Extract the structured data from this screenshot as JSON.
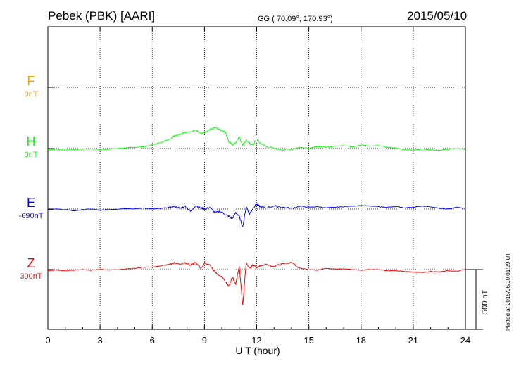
{
  "header": {
    "station": "Pebek (PBK)  [AARI]",
    "coords": "GG ( 70.09°, 170.93°)",
    "date": "2015/05/10"
  },
  "side_note": "Plotted at 2015/06/10 01:29 UT",
  "scale_label": "500 nT",
  "chart_data": {
    "type": "line",
    "xlabel": "U T (hour)",
    "xlim": [
      0,
      24
    ],
    "xticks": [
      "0",
      "3",
      "6",
      "9",
      "12",
      "15",
      "18",
      "21",
      "24"
    ],
    "components": [
      {
        "name": "F",
        "baseline": "0nT",
        "color": "#ffa500",
        "has_data": false
      },
      {
        "name": "H",
        "baseline": "0nT",
        "color": "#00ff00",
        "has_data": true
      },
      {
        "name": "E",
        "baseline": "-690nT",
        "color": "#0000ff",
        "has_data": true
      },
      {
        "name": "Z",
        "baseline": "300nT",
        "color": "#ff0000",
        "has_data": true
      }
    ],
    "series_units": "nT relative to baseline",
    "series": [
      {
        "name": "H",
        "x": [
          0,
          0.5,
          1,
          1.5,
          2,
          2.5,
          3,
          3.5,
          4,
          4.5,
          5,
          5.5,
          6,
          6.5,
          7,
          7.3,
          7.6,
          7.9,
          8.2,
          8.5,
          8.8,
          9,
          9.3,
          9.6,
          9.9,
          10.2,
          10.4,
          10.6,
          10.8,
          11,
          11.2,
          11.4,
          11.6,
          11.8,
          12,
          12.2,
          12.5,
          13,
          13.5,
          14,
          14.5,
          15,
          15.5,
          16,
          16.5,
          17,
          17.5,
          18,
          18.5,
          19,
          19.5,
          20,
          20.5,
          21,
          21.5,
          22,
          22.5,
          23,
          23.5,
          24
        ],
        "y": [
          -10,
          -5,
          -12,
          -8,
          -5,
          -3,
          -8,
          -5,
          0,
          5,
          10,
          15,
          30,
          50,
          80,
          110,
          120,
          140,
          135,
          160,
          125,
          130,
          155,
          175,
          155,
          140,
          60,
          30,
          50,
          100,
          30,
          70,
          40,
          30,
          80,
          45,
          20,
          0,
          -10,
          -5,
          10,
          5,
          15,
          10,
          20,
          25,
          15,
          30,
          20,
          25,
          10,
          5,
          -10,
          -15,
          -5,
          -10,
          -15,
          -5,
          0,
          -5
        ]
      },
      {
        "name": "E",
        "x": [
          0,
          0.5,
          1,
          1.5,
          2,
          2.5,
          3,
          3.5,
          4,
          4.5,
          5,
          5.5,
          6,
          6.5,
          7,
          7.3,
          7.6,
          7.9,
          8.2,
          8.5,
          8.8,
          9,
          9.3,
          9.6,
          9.9,
          10.2,
          10.4,
          10.6,
          10.8,
          11,
          11.2,
          11.4,
          11.6,
          11.8,
          12,
          12.2,
          12.5,
          13,
          13.5,
          14,
          14.5,
          15,
          15.5,
          16,
          16.5,
          17,
          17.5,
          18,
          18.5,
          19,
          19.5,
          20,
          20.5,
          21,
          21.5,
          22,
          22.5,
          23,
          23.5,
          24
        ],
        "y": [
          -5,
          0,
          -5,
          -15,
          -5,
          0,
          -10,
          -5,
          0,
          5,
          0,
          10,
          0,
          5,
          15,
          20,
          5,
          25,
          -20,
          30,
          10,
          0,
          15,
          -30,
          -20,
          -45,
          -60,
          -80,
          -30,
          -60,
          -150,
          20,
          -40,
          10,
          40,
          20,
          10,
          25,
          15,
          5,
          25,
          15,
          20,
          10,
          15,
          20,
          25,
          30,
          25,
          20,
          15,
          20,
          10,
          15,
          25,
          20,
          5,
          0,
          15,
          5
        ]
      },
      {
        "name": "Z",
        "x": [
          0,
          0.5,
          1,
          1.5,
          2,
          2.5,
          3,
          3.5,
          4,
          4.5,
          5,
          5.5,
          6,
          6.5,
          7,
          7.3,
          7.6,
          7.9,
          8.2,
          8.5,
          8.8,
          9,
          9.3,
          9.6,
          9.9,
          10.2,
          10.4,
          10.6,
          10.8,
          11,
          11.2,
          11.4,
          11.6,
          11.8,
          12,
          12.2,
          12.5,
          13,
          13.5,
          14,
          14.5,
          15,
          15.5,
          16,
          16.5,
          17,
          17.5,
          18,
          18.5,
          19,
          19.5,
          20,
          20.5,
          21,
          21.5,
          22,
          22.5,
          23,
          23.5,
          24
        ],
        "y": [
          -10,
          -5,
          -10,
          -5,
          0,
          -5,
          0,
          -5,
          0,
          5,
          10,
          20,
          20,
          30,
          45,
          60,
          40,
          55,
          40,
          60,
          10,
          55,
          40,
          -20,
          -50,
          -100,
          -140,
          -60,
          -120,
          30,
          -300,
          60,
          10,
          40,
          20,
          30,
          45,
          25,
          50,
          60,
          10,
          0,
          -5,
          10,
          5,
          5,
          0,
          -5,
          0,
          0,
          -10,
          -10,
          -15,
          -20,
          -25,
          -15,
          -20,
          -10,
          -15,
          0
        ]
      }
    ]
  }
}
